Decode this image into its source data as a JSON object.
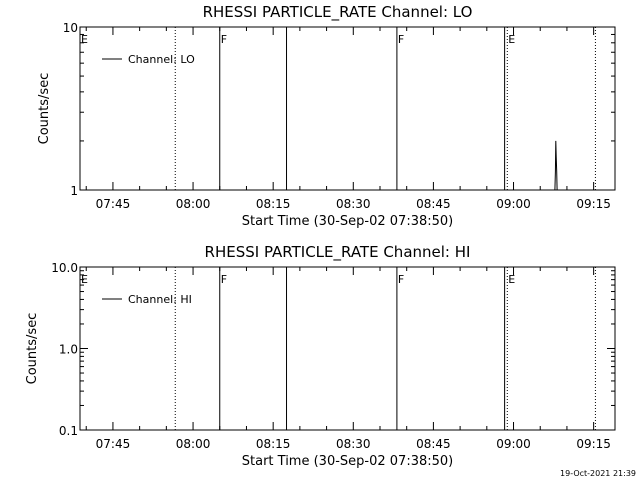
{
  "footer": {
    "timestamp": "19-Oct-2021 21:39"
  },
  "chart_data": [
    {
      "type": "line",
      "title": "RHESSI PARTICLE_RATE Channel: LO",
      "xlabel": "Start Time (30-Sep-02 07:38:50)",
      "ylabel": "Counts/sec",
      "yscale": "log",
      "ylim": [
        1,
        10
      ],
      "ytick_labels": [
        "1",
        "10"
      ],
      "xlim": [
        "07:38:50",
        "09:19:00"
      ],
      "xtick_labels": [
        "07:45",
        "08:00",
        "08:15",
        "08:30",
        "08:45",
        "09:00",
        "09:15"
      ],
      "legend": {
        "placement": "top-left",
        "entries": [
          "Channel: LO"
        ]
      },
      "series": [
        {
          "name": "Channel: LO",
          "x": [
            "09:07:30",
            "09:07:45",
            "09:07:50",
            "09:07:55",
            "09:08:00",
            "09:08:05",
            "09:08:10",
            "09:08:20"
          ],
          "y": [
            1,
            1,
            1.3,
            2,
            1.6,
            1.3,
            1,
            1
          ]
        }
      ],
      "markers": [
        {
          "time": "07:38:50",
          "label": "E",
          "style": "solid"
        },
        {
          "time": "07:56:40",
          "label": "",
          "style": "dotted"
        },
        {
          "time": "08:05:00",
          "label": "F",
          "style": "solid"
        },
        {
          "time": "08:17:30",
          "label": "",
          "style": "solid"
        },
        {
          "time": "08:38:10",
          "label": "F",
          "style": "solid"
        },
        {
          "time": "08:58:20",
          "label": "",
          "style": "solid"
        },
        {
          "time": "08:58:50",
          "label": "E",
          "style": "dotted"
        },
        {
          "time": "09:15:20",
          "label": "",
          "style": "dotted"
        }
      ]
    },
    {
      "type": "line",
      "title": "RHESSI PARTICLE_RATE Channel: HI",
      "xlabel": "Start Time (30-Sep-02 07:38:50)",
      "ylabel": "Counts/sec",
      "yscale": "log",
      "ylim": [
        0.1,
        10
      ],
      "ytick_labels": [
        "0.1",
        "1.0",
        "10.0"
      ],
      "xlim": [
        "07:38:50",
        "09:19:00"
      ],
      "xtick_labels": [
        "07:45",
        "08:00",
        "08:15",
        "08:30",
        "08:45",
        "09:00",
        "09:15"
      ],
      "legend": {
        "placement": "top-left",
        "entries": [
          "Channel: HI"
        ]
      },
      "series": [
        {
          "name": "Channel: HI",
          "x": [],
          "y": []
        }
      ],
      "markers": [
        {
          "time": "07:38:50",
          "label": "E",
          "style": "solid"
        },
        {
          "time": "07:56:40",
          "label": "",
          "style": "dotted"
        },
        {
          "time": "08:05:00",
          "label": "F",
          "style": "solid"
        },
        {
          "time": "08:17:30",
          "label": "",
          "style": "solid"
        },
        {
          "time": "08:38:10",
          "label": "F",
          "style": "solid"
        },
        {
          "time": "08:58:20",
          "label": "",
          "style": "solid"
        },
        {
          "time": "08:58:50",
          "label": "E",
          "style": "dotted"
        },
        {
          "time": "09:15:20",
          "label": "",
          "style": "dotted"
        }
      ]
    }
  ]
}
